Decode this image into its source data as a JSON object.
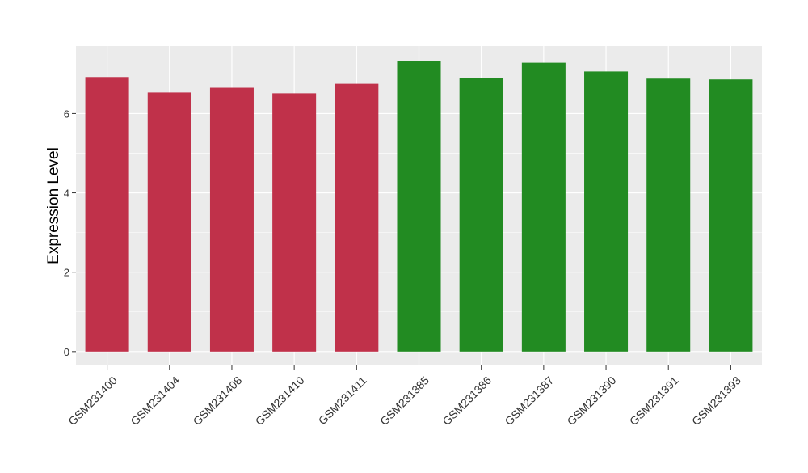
{
  "chart_data": {
    "type": "bar",
    "title": "",
    "xlabel": "",
    "ylabel": "Expression Level",
    "ylim": [
      -0.35,
      7.7
    ],
    "yticks": [
      0,
      2,
      4,
      6
    ],
    "grid": true,
    "categories": [
      "GSM231400",
      "GSM231404",
      "GSM231408",
      "GSM231410",
      "GSM231411",
      "GSM231385",
      "GSM231386",
      "GSM231387",
      "GSM231390",
      "GSM231391",
      "GSM231393"
    ],
    "values": [
      6.92,
      6.53,
      6.65,
      6.51,
      6.75,
      7.32,
      6.9,
      7.28,
      7.06,
      6.88,
      6.86
    ],
    "bar_colors": [
      "#c0314a",
      "#c0314a",
      "#c0314a",
      "#c0314a",
      "#c0314a",
      "#228b22",
      "#228b22",
      "#228b22",
      "#228b22",
      "#228b22",
      "#228b22"
    ],
    "panel_background": "#ebebeb",
    "grid_color": "#ffffff"
  }
}
